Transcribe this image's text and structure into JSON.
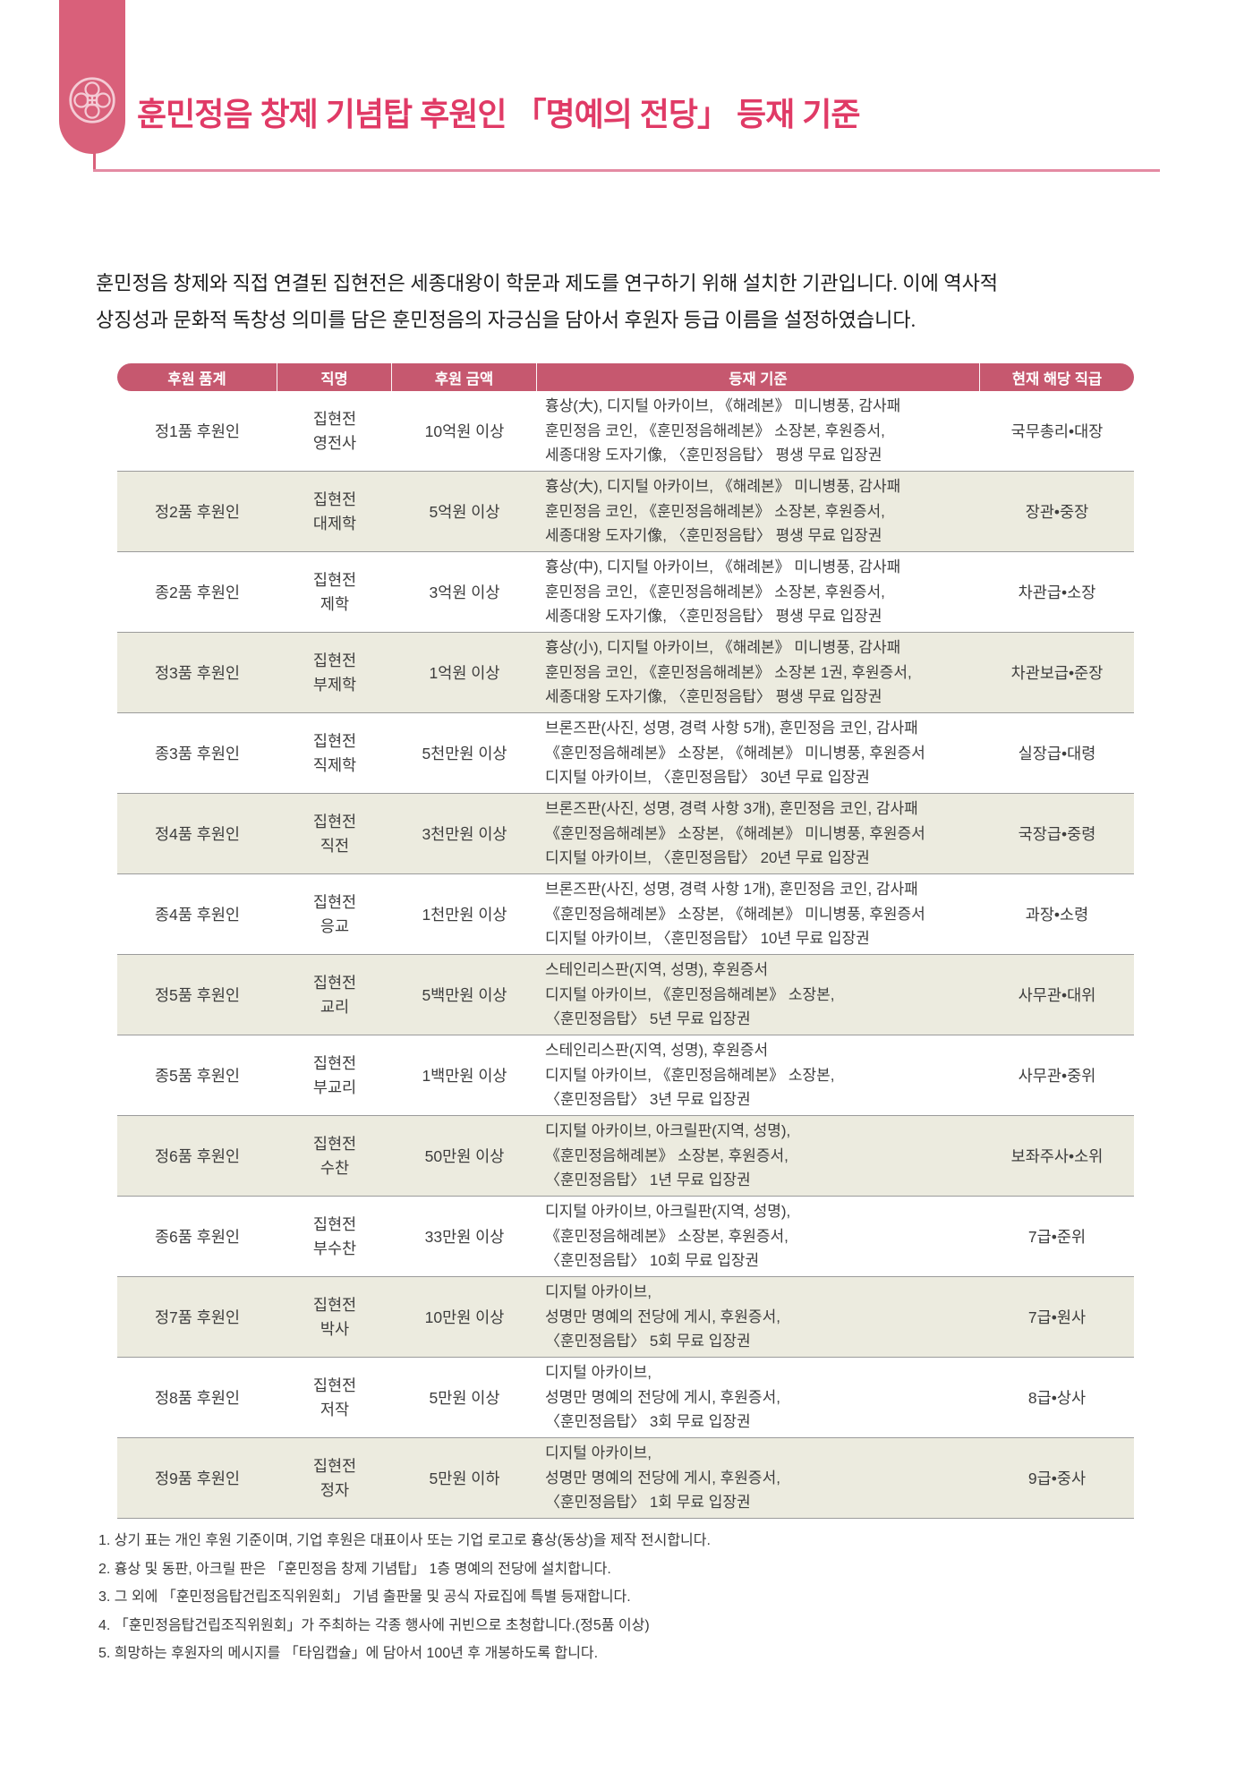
{
  "page": {
    "title": "훈민정음 창제 기념탑 후원인 「명예의 전당」 등재 기준",
    "intro_line1": "훈민정음 창제와 직접 연결된 집현전은 세종대왕이 학문과 제도를 연구하기 위해 설치한 기관입니다. 이에 역사적",
    "intro_line2": "상징성과 문화적 독창성 의미를 담은 훈민정음의 자긍심을 담아서 후원자 등급 이름을 설정하였습니다."
  },
  "colors": {
    "tab_pink": "#d9607a",
    "title_pink": "#e03a66",
    "rule_pink": "#e48ba3",
    "header_rose": "#c6586f",
    "row_beige": "#ecebdf",
    "row_border": "#9b9b9b"
  },
  "table": {
    "headers": [
      "후원 품계",
      "직명",
      "후원 금액",
      "등재 기준",
      "현재 해당 직급"
    ],
    "rows": [
      {
        "rank": "정1품 후원인",
        "title_lines": [
          "집현전",
          "영전사"
        ],
        "amount": "10억원 이상",
        "criteria": [
          "흉상(大), 디지털 아카이브, 《해례본》 미니병풍, 감사패",
          "훈민정음 코인, 《훈민정음해례본》 소장본, 후원증서,",
          "세종대왕 도자기像, 〈훈민정음탑〉 평생 무료 입장권"
        ],
        "equivalent": "국무총리•대장"
      },
      {
        "rank": "정2품 후원인",
        "title_lines": [
          "집현전",
          "대제학"
        ],
        "amount": "5억원 이상",
        "criteria": [
          "흉상(大), 디지털 아카이브, 《해례본》 미니병풍, 감사패",
          "훈민정음 코인, 《훈민정음해례본》 소장본, 후원증서,",
          "세종대왕 도자기像, 〈훈민정음탑〉 평생 무료 입장권"
        ],
        "equivalent": "장관•중장"
      },
      {
        "rank": "종2품 후원인",
        "title_lines": [
          "집현전",
          "제학"
        ],
        "amount": "3억원 이상",
        "criteria": [
          "흉상(中), 디지털 아카이브, 《해례본》 미니병풍, 감사패",
          "훈민정음 코인, 《훈민정음해례본》 소장본, 후원증서,",
          "세종대왕 도자기像, 〈훈민정음탑〉 평생 무료 입장권"
        ],
        "equivalent": "차관급•소장"
      },
      {
        "rank": "정3품 후원인",
        "title_lines": [
          "집현전",
          "부제학"
        ],
        "amount": "1억원 이상",
        "criteria": [
          "흉상(小), 디지털 아카이브, 《해례본》 미니병풍, 감사패",
          "훈민정음 코인, 《훈민정음해례본》 소장본 1권, 후원증서,",
          "세종대왕 도자기像, 〈훈민정음탑〉 평생 무료 입장권"
        ],
        "equivalent": "차관보급•준장"
      },
      {
        "rank": "종3품 후원인",
        "title_lines": [
          "집현전",
          "직제학"
        ],
        "amount": "5천만원 이상",
        "criteria": [
          "브론즈판(사진, 성명, 경력 사항 5개), 훈민정음 코인, 감사패",
          "《훈민정음해례본》 소장본, 《해례본》 미니병풍, 후원증서",
          "디지털 아카이브, 〈훈민정음탑〉 30년 무료 입장권"
        ],
        "equivalent": "실장급•대령"
      },
      {
        "rank": "정4품 후원인",
        "title_lines": [
          "집현전",
          "직전"
        ],
        "amount": "3천만원 이상",
        "criteria": [
          "브론즈판(사진, 성명, 경력 사항 3개), 훈민정음 코인, 감사패",
          "《훈민정음해례본》 소장본, 《해례본》 미니병풍, 후원증서",
          "디지털 아카이브, 〈훈민정음탑〉 20년 무료 입장권"
        ],
        "equivalent": "국장급•중령"
      },
      {
        "rank": "종4품 후원인",
        "title_lines": [
          "집현전",
          "응교"
        ],
        "amount": "1천만원 이상",
        "criteria": [
          "브론즈판(사진, 성명, 경력 사항 1개), 훈민정음 코인, 감사패",
          "《훈민정음해례본》 소장본, 《해례본》 미니병풍, 후원증서",
          "디지털 아카이브, 〈훈민정음탑〉 10년 무료 입장권"
        ],
        "equivalent": "과장•소령"
      },
      {
        "rank": "정5품 후원인",
        "title_lines": [
          "집현전",
          "교리"
        ],
        "amount": "5백만원 이상",
        "criteria": [
          "스테인리스판(지역, 성명), 후원증서",
          "디지털 아카이브, 《훈민정음해례본》 소장본,",
          "〈훈민정음탑〉 5년 무료 입장권"
        ],
        "equivalent": "사무관•대위"
      },
      {
        "rank": "종5품 후원인",
        "title_lines": [
          "집현전",
          "부교리"
        ],
        "amount": "1백만원 이상",
        "criteria": [
          "스테인리스판(지역, 성명), 후원증서",
          "디지털 아카이브, 《훈민정음해례본》 소장본,",
          "〈훈민정음탑〉 3년 무료 입장권"
        ],
        "equivalent": "사무관•중위"
      },
      {
        "rank": "정6품 후원인",
        "title_lines": [
          "집현전",
          "수찬"
        ],
        "amount": "50만원 이상",
        "criteria": [
          "디지털 아카이브, 아크릴판(지역, 성명),",
          "《훈민정음해례본》 소장본, 후원증서,",
          "〈훈민정음탑〉 1년 무료 입장권"
        ],
        "equivalent": "보좌주사•소위"
      },
      {
        "rank": "종6품 후원인",
        "title_lines": [
          "집현전",
          "부수찬"
        ],
        "amount": "33만원 이상",
        "criteria": [
          "디지털 아카이브, 아크릴판(지역, 성명),",
          "《훈민정음해례본》 소장본, 후원증서,",
          "〈훈민정음탑〉 10회 무료 입장권"
        ],
        "equivalent": "7급•준위"
      },
      {
        "rank": "정7품 후원인",
        "title_lines": [
          "집현전",
          "박사"
        ],
        "amount": "10만원 이상",
        "criteria": [
          "디지털 아카이브,",
          "성명만 명예의 전당에 게시, 후원증서,",
          "〈훈민정음탑〉 5회 무료 입장권"
        ],
        "equivalent": "7급•원사"
      },
      {
        "rank": "정8품 후원인",
        "title_lines": [
          "집현전",
          "저작"
        ],
        "amount": "5만원 이상",
        "criteria": [
          "디지털 아카이브,",
          "성명만 명예의 전당에 게시, 후원증서,",
          "〈훈민정음탑〉 3회 무료 입장권"
        ],
        "equivalent": "8급•상사"
      },
      {
        "rank": "정9품 후원인",
        "title_lines": [
          "집현전",
          "정자"
        ],
        "amount": "5만원 이하",
        "criteria": [
          "디지털 아카이브,",
          "성명만 명예의 전당에 게시, 후원증서,",
          "〈훈민정음탑〉 1회 무료 입장권"
        ],
        "equivalent": "9급•중사"
      }
    ]
  },
  "notes": [
    "1. 상기 표는 개인 후원 기준이며, 기업 후원은 대표이사 또는 기업 로고로 흉상(동상)을 제작 전시합니다.",
    "2. 흉상 및 동판, 아크릴 판은 「훈민정음 창제 기념탑」 1층 명예의 전당에 설치합니다.",
    "3. 그 외에 「훈민정음탑건립조직위원회」 기념 출판물 및 공식 자료집에 특별 등재합니다.",
    "4. 「훈민정음탑건립조직위원회」가 주최하는 각종 행사에 귀빈으로 초청합니다.(정5품 이상)",
    "5. 희망하는 후원자의 메시지를 「타임캡슐」에 담아서 100년 후 개봉하도록 합니다."
  ]
}
